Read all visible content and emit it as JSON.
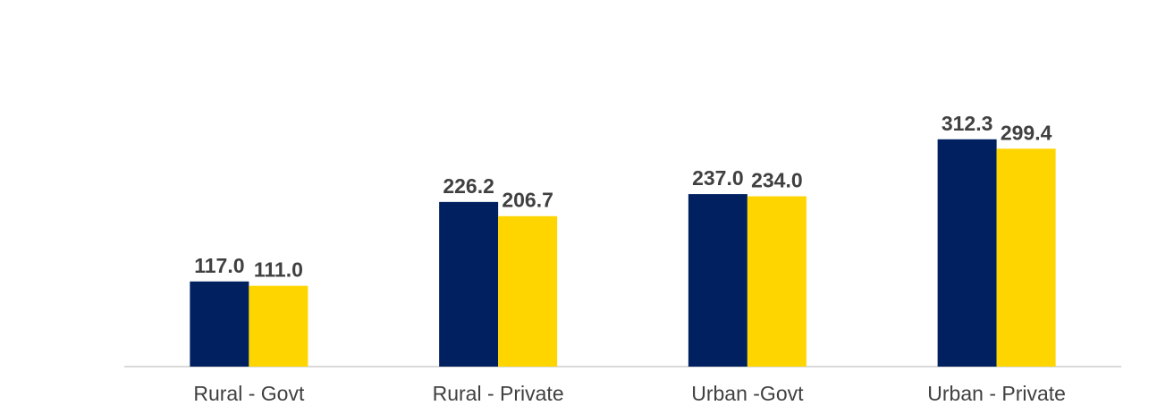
{
  "chart_data": {
    "type": "bar",
    "title": "",
    "xlabel": "",
    "ylabel": "",
    "categories": [
      "Rural - Govt",
      "Rural - Private",
      "Urban -Govt",
      "Urban - Private"
    ],
    "series": [
      {
        "values": [
          117.0,
          226.2,
          237.0,
          312.3
        ],
        "color": "#002060"
      },
      {
        "values": [
          111.0,
          206.7,
          234.0,
          299.4
        ],
        "color": "#FFD500"
      }
    ],
    "value_labels": [
      [
        "117.0",
        "226.2",
        "237.0",
        "312.3"
      ],
      [
        "111.0",
        "206.7",
        "234.0",
        "299.4"
      ]
    ],
    "ylim": [
      0,
      420
    ],
    "grid": false,
    "legend": "none",
    "show_y_axis": false
  }
}
